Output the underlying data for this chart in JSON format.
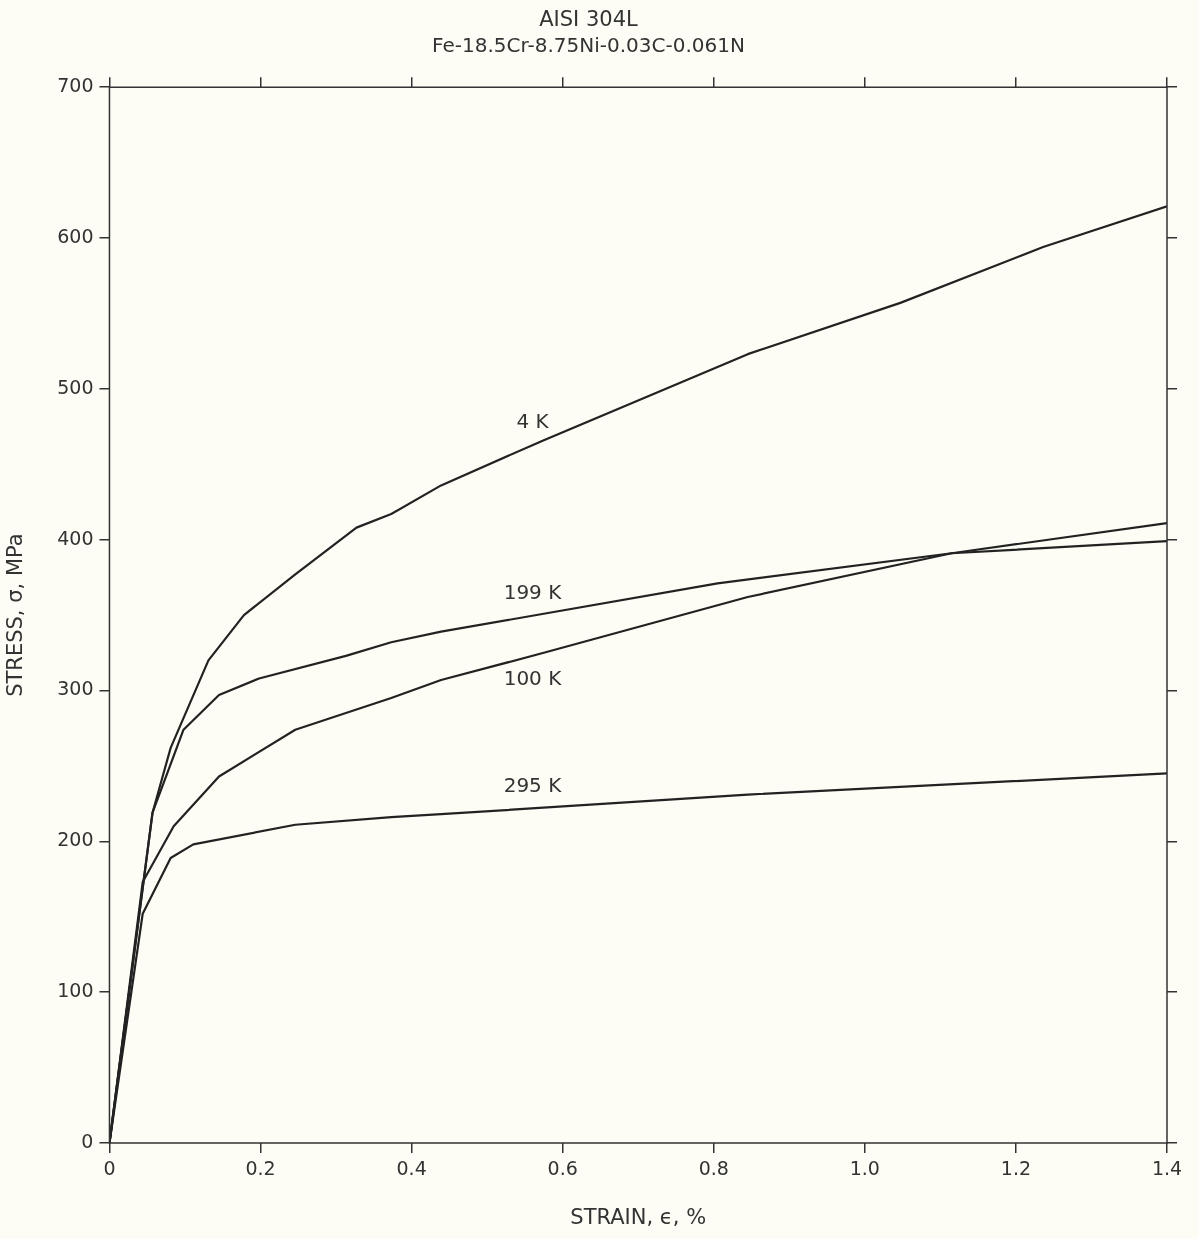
{
  "chart_data": {
    "type": "line",
    "title": "AISI 304L",
    "subtitle": "Fe-18.5Cr-8.75Ni-0.03C-0.061N",
    "xlabel": "STRAIN, ϵ, %",
    "ylabel": "STRESS, σ, MPa",
    "xlim": [
      0,
      1.4
    ],
    "xticks": [
      0,
      0.2,
      0.4,
      0.6,
      0.8,
      {
        "value": 1,
        "label": "1.0"
      },
      1.2,
      1.4
    ],
    "ylim": [
      0,
      700
    ],
    "yticks": [
      0,
      100,
      200,
      300,
      400,
      500,
      600,
      700
    ],
    "grid": false,
    "legend": false,
    "marker": "none",
    "line_style": "solid",
    "series": [
      {
        "name": "4 K",
        "color": "#222222",
        "x": [
          0,
          0.057,
          0.081,
          0.131,
          0.178,
          0.246,
          0.327,
          0.373,
          0.439,
          0.575,
          0.845,
          1.047,
          1.236,
          1.4
        ],
        "values": [
          0,
          219,
          262,
          320,
          350,
          377,
          408,
          417,
          436,
          466,
          523,
          557,
          594,
          621
        ]
      },
      {
        "name": "199 K",
        "color": "#222222",
        "x": [
          0,
          0.057,
          0.098,
          0.145,
          0.198,
          0.313,
          0.373,
          0.439,
          0.805,
          1.115,
          1.4
        ],
        "values": [
          0,
          219,
          274,
          297,
          308,
          323,
          332,
          339,
          371,
          391,
          399
        ]
      },
      {
        "name": "100 K",
        "color": "#222222",
        "x": [
          0,
          0.044,
          0.085,
          0.145,
          0.246,
          0.373,
          0.439,
          0.575,
          0.845,
          1.115,
          1.4
        ],
        "values": [
          0,
          173,
          210,
          243,
          274,
          295,
          307,
          325,
          362,
          391,
          411
        ]
      },
      {
        "name": "295 K",
        "color": "#222222",
        "x": [
          0,
          0.044,
          0.081,
          0.111,
          0.246,
          0.373,
          0.439,
          0.845,
          1.4
        ],
        "values": [
          0,
          152,
          189,
          198,
          211,
          216,
          218,
          231,
          245
        ]
      }
    ]
  }
}
